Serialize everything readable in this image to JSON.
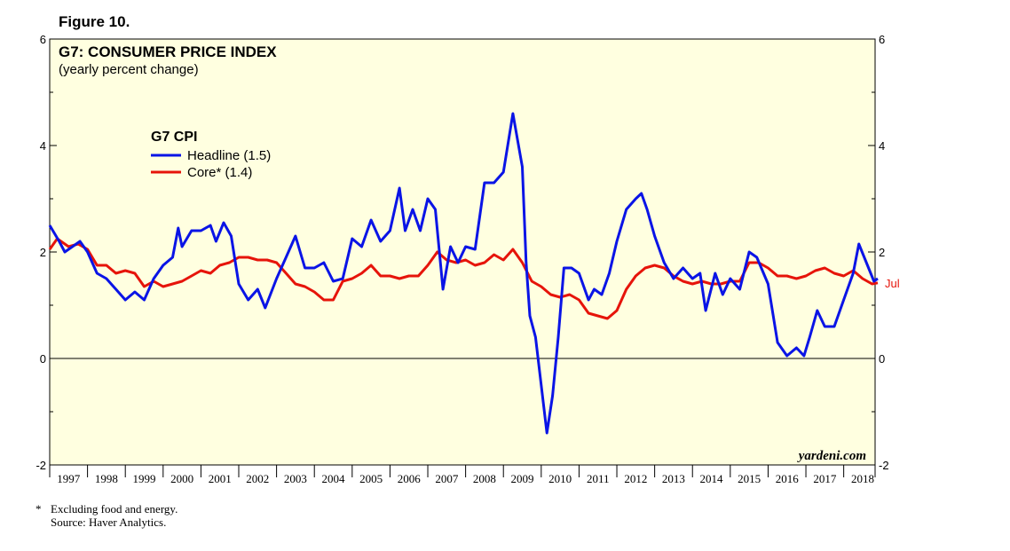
{
  "figure_label": "Figure 10.",
  "footnote": {
    "marker": "*",
    "note": "Excluding food and energy.",
    "source": "Source: Haver Analytics."
  },
  "watermark": "yardeni.com",
  "end_label": "Jul",
  "colors": {
    "plot_bg": "#ffffe0",
    "headline": "#0a14e6",
    "core": "#e6140a",
    "axis": "#000000"
  },
  "chart_data": {
    "type": "line",
    "title": "G7: CONSUMER PRICE INDEX",
    "subtitle": "(yearly percent change)",
    "legend_title": "G7 CPI",
    "legend_position": "upper-left",
    "xlabel": "",
    "ylabel": "",
    "x_range": [
      1997,
      2018.83
    ],
    "ylim": [
      -2,
      6
    ],
    "y_ticks": [
      -2,
      0,
      2,
      4,
      6
    ],
    "years": [
      "1997",
      "1998",
      "1999",
      "2000",
      "2001",
      "2002",
      "2003",
      "2004",
      "2005",
      "2006",
      "2007",
      "2008",
      "2009",
      "2010",
      "2011",
      "2012",
      "2013",
      "2014",
      "2015",
      "2016",
      "2017",
      "2018"
    ],
    "zero_line": true,
    "series": [
      {
        "name": "Headline (1.5)",
        "color": "#0a14e6",
        "points": [
          [
            1997.0,
            2.5
          ],
          [
            1997.25,
            2.2
          ],
          [
            1997.4,
            2.0
          ],
          [
            1997.6,
            2.1
          ],
          [
            1997.8,
            2.2
          ],
          [
            1998.0,
            2.0
          ],
          [
            1998.25,
            1.6
          ],
          [
            1998.5,
            1.5
          ],
          [
            1998.75,
            1.3
          ],
          [
            1999.0,
            1.1
          ],
          [
            1999.25,
            1.25
          ],
          [
            1999.5,
            1.1
          ],
          [
            1999.75,
            1.5
          ],
          [
            2000.0,
            1.75
          ],
          [
            2000.25,
            1.9
          ],
          [
            2000.4,
            2.45
          ],
          [
            2000.5,
            2.1
          ],
          [
            2000.75,
            2.4
          ],
          [
            2001.0,
            2.4
          ],
          [
            2001.25,
            2.5
          ],
          [
            2001.4,
            2.2
          ],
          [
            2001.6,
            2.55
          ],
          [
            2001.8,
            2.3
          ],
          [
            2002.0,
            1.4
          ],
          [
            2002.25,
            1.1
          ],
          [
            2002.5,
            1.3
          ],
          [
            2002.7,
            0.95
          ],
          [
            2003.0,
            1.5
          ],
          [
            2003.25,
            1.9
          ],
          [
            2003.5,
            2.3
          ],
          [
            2003.75,
            1.7
          ],
          [
            2004.0,
            1.7
          ],
          [
            2004.25,
            1.8
          ],
          [
            2004.5,
            1.45
          ],
          [
            2004.75,
            1.5
          ],
          [
            2005.0,
            2.25
          ],
          [
            2005.25,
            2.1
          ],
          [
            2005.5,
            2.6
          ],
          [
            2005.75,
            2.2
          ],
          [
            2006.0,
            2.4
          ],
          [
            2006.25,
            3.2
          ],
          [
            2006.4,
            2.4
          ],
          [
            2006.6,
            2.8
          ],
          [
            2006.8,
            2.4
          ],
          [
            2007.0,
            3.0
          ],
          [
            2007.2,
            2.8
          ],
          [
            2007.4,
            1.3
          ],
          [
            2007.6,
            2.1
          ],
          [
            2007.8,
            1.8
          ],
          [
            2008.0,
            2.1
          ],
          [
            2008.25,
            2.05
          ],
          [
            2008.5,
            3.3
          ],
          [
            2008.75,
            3.3
          ],
          [
            2009.0,
            3.5
          ],
          [
            2009.25,
            4.6
          ],
          [
            2009.5,
            3.6
          ],
          [
            2009.6,
            1.8
          ],
          [
            2009.7,
            0.8
          ],
          [
            2009.85,
            0.4
          ],
          [
            2010.0,
            -0.5
          ],
          [
            2010.15,
            -1.4
          ],
          [
            2010.3,
            -0.7
          ],
          [
            2010.45,
            0.4
          ],
          [
            2010.6,
            1.7
          ],
          [
            2010.8,
            1.7
          ],
          [
            2011.0,
            1.6
          ],
          [
            2011.25,
            1.1
          ],
          [
            2011.4,
            1.3
          ],
          [
            2011.6,
            1.2
          ],
          [
            2011.8,
            1.6
          ],
          [
            2012.0,
            2.2
          ],
          [
            2012.25,
            2.8
          ],
          [
            2012.5,
            3.0
          ],
          [
            2012.65,
            3.1
          ],
          [
            2012.8,
            2.8
          ],
          [
            2013.0,
            2.3
          ],
          [
            2013.25,
            1.8
          ],
          [
            2013.5,
            1.5
          ],
          [
            2013.75,
            1.7
          ],
          [
            2014.0,
            1.5
          ],
          [
            2014.2,
            1.6
          ],
          [
            2014.35,
            0.9
          ],
          [
            2014.6,
            1.6
          ],
          [
            2014.8,
            1.2
          ],
          [
            2015.0,
            1.5
          ],
          [
            2015.25,
            1.3
          ],
          [
            2015.5,
            2.0
          ],
          [
            2015.7,
            1.9
          ],
          [
            2016.0,
            1.4
          ],
          [
            2016.25,
            0.3
          ],
          [
            2016.5,
            0.05
          ],
          [
            2016.75,
            0.2
          ],
          [
            2016.95,
            0.05
          ],
          [
            2017.1,
            0.4
          ],
          [
            2017.3,
            0.9
          ],
          [
            2017.5,
            0.6
          ],
          [
            2017.75,
            0.6
          ],
          [
            2018.0,
            1.1
          ],
          [
            2018.25,
            1.6
          ],
          [
            2018.4,
            2.15
          ],
          [
            2018.6,
            1.8
          ],
          [
            2018.8,
            1.45
          ],
          [
            2018.9,
            1.5
          ]
        ]
      },
      {
        "name": "Core* (1.4)",
        "color": "#e6140a",
        "points": [
          [
            1997.0,
            2.05
          ],
          [
            1997.2,
            2.25
          ],
          [
            1997.5,
            2.1
          ],
          [
            1997.75,
            2.15
          ],
          [
            1998.0,
            2.05
          ],
          [
            1998.25,
            1.75
          ],
          [
            1998.5,
            1.75
          ],
          [
            1998.75,
            1.6
          ],
          [
            1999.0,
            1.65
          ],
          [
            1999.25,
            1.6
          ],
          [
            1999.5,
            1.35
          ],
          [
            1999.75,
            1.45
          ],
          [
            2000.0,
            1.35
          ],
          [
            2000.25,
            1.4
          ],
          [
            2000.5,
            1.45
          ],
          [
            2000.75,
            1.55
          ],
          [
            2001.0,
            1.65
          ],
          [
            2001.25,
            1.6
          ],
          [
            2001.5,
            1.75
          ],
          [
            2001.75,
            1.8
          ],
          [
            2002.0,
            1.9
          ],
          [
            2002.25,
            1.9
          ],
          [
            2002.5,
            1.85
          ],
          [
            2002.75,
            1.85
          ],
          [
            2003.0,
            1.8
          ],
          [
            2003.25,
            1.6
          ],
          [
            2003.5,
            1.4
          ],
          [
            2003.75,
            1.35
          ],
          [
            2004.0,
            1.25
          ],
          [
            2004.25,
            1.1
          ],
          [
            2004.5,
            1.1
          ],
          [
            2004.75,
            1.45
          ],
          [
            2005.0,
            1.5
          ],
          [
            2005.25,
            1.6
          ],
          [
            2005.5,
            1.75
          ],
          [
            2005.75,
            1.55
          ],
          [
            2006.0,
            1.55
          ],
          [
            2006.25,
            1.5
          ],
          [
            2006.5,
            1.55
          ],
          [
            2006.75,
            1.55
          ],
          [
            2007.0,
            1.75
          ],
          [
            2007.25,
            2.0
          ],
          [
            2007.5,
            1.85
          ],
          [
            2007.75,
            1.8
          ],
          [
            2008.0,
            1.85
          ],
          [
            2008.25,
            1.75
          ],
          [
            2008.5,
            1.8
          ],
          [
            2008.75,
            1.95
          ],
          [
            2009.0,
            1.85
          ],
          [
            2009.25,
            2.05
          ],
          [
            2009.5,
            1.8
          ],
          [
            2009.75,
            1.45
          ],
          [
            2010.0,
            1.35
          ],
          [
            2010.25,
            1.2
          ],
          [
            2010.5,
            1.15
          ],
          [
            2010.75,
            1.2
          ],
          [
            2011.0,
            1.1
          ],
          [
            2011.25,
            0.85
          ],
          [
            2011.5,
            0.8
          ],
          [
            2011.75,
            0.75
          ],
          [
            2012.0,
            0.9
          ],
          [
            2012.25,
            1.3
          ],
          [
            2012.5,
            1.55
          ],
          [
            2012.75,
            1.7
          ],
          [
            2013.0,
            1.75
          ],
          [
            2013.25,
            1.7
          ],
          [
            2013.5,
            1.55
          ],
          [
            2013.75,
            1.45
          ],
          [
            2014.0,
            1.4
          ],
          [
            2014.25,
            1.45
          ],
          [
            2014.5,
            1.4
          ],
          [
            2014.75,
            1.4
          ],
          [
            2015.0,
            1.45
          ],
          [
            2015.25,
            1.45
          ],
          [
            2015.5,
            1.8
          ],
          [
            2015.75,
            1.8
          ],
          [
            2016.0,
            1.7
          ],
          [
            2016.25,
            1.55
          ],
          [
            2016.5,
            1.55
          ],
          [
            2016.75,
            1.5
          ],
          [
            2017.0,
            1.55
          ],
          [
            2017.25,
            1.65
          ],
          [
            2017.5,
            1.7
          ],
          [
            2017.75,
            1.6
          ],
          [
            2018.0,
            1.55
          ],
          [
            2018.25,
            1.65
          ],
          [
            2018.5,
            1.5
          ],
          [
            2018.75,
            1.4
          ],
          [
            2018.9,
            1.42
          ]
        ]
      }
    ]
  }
}
